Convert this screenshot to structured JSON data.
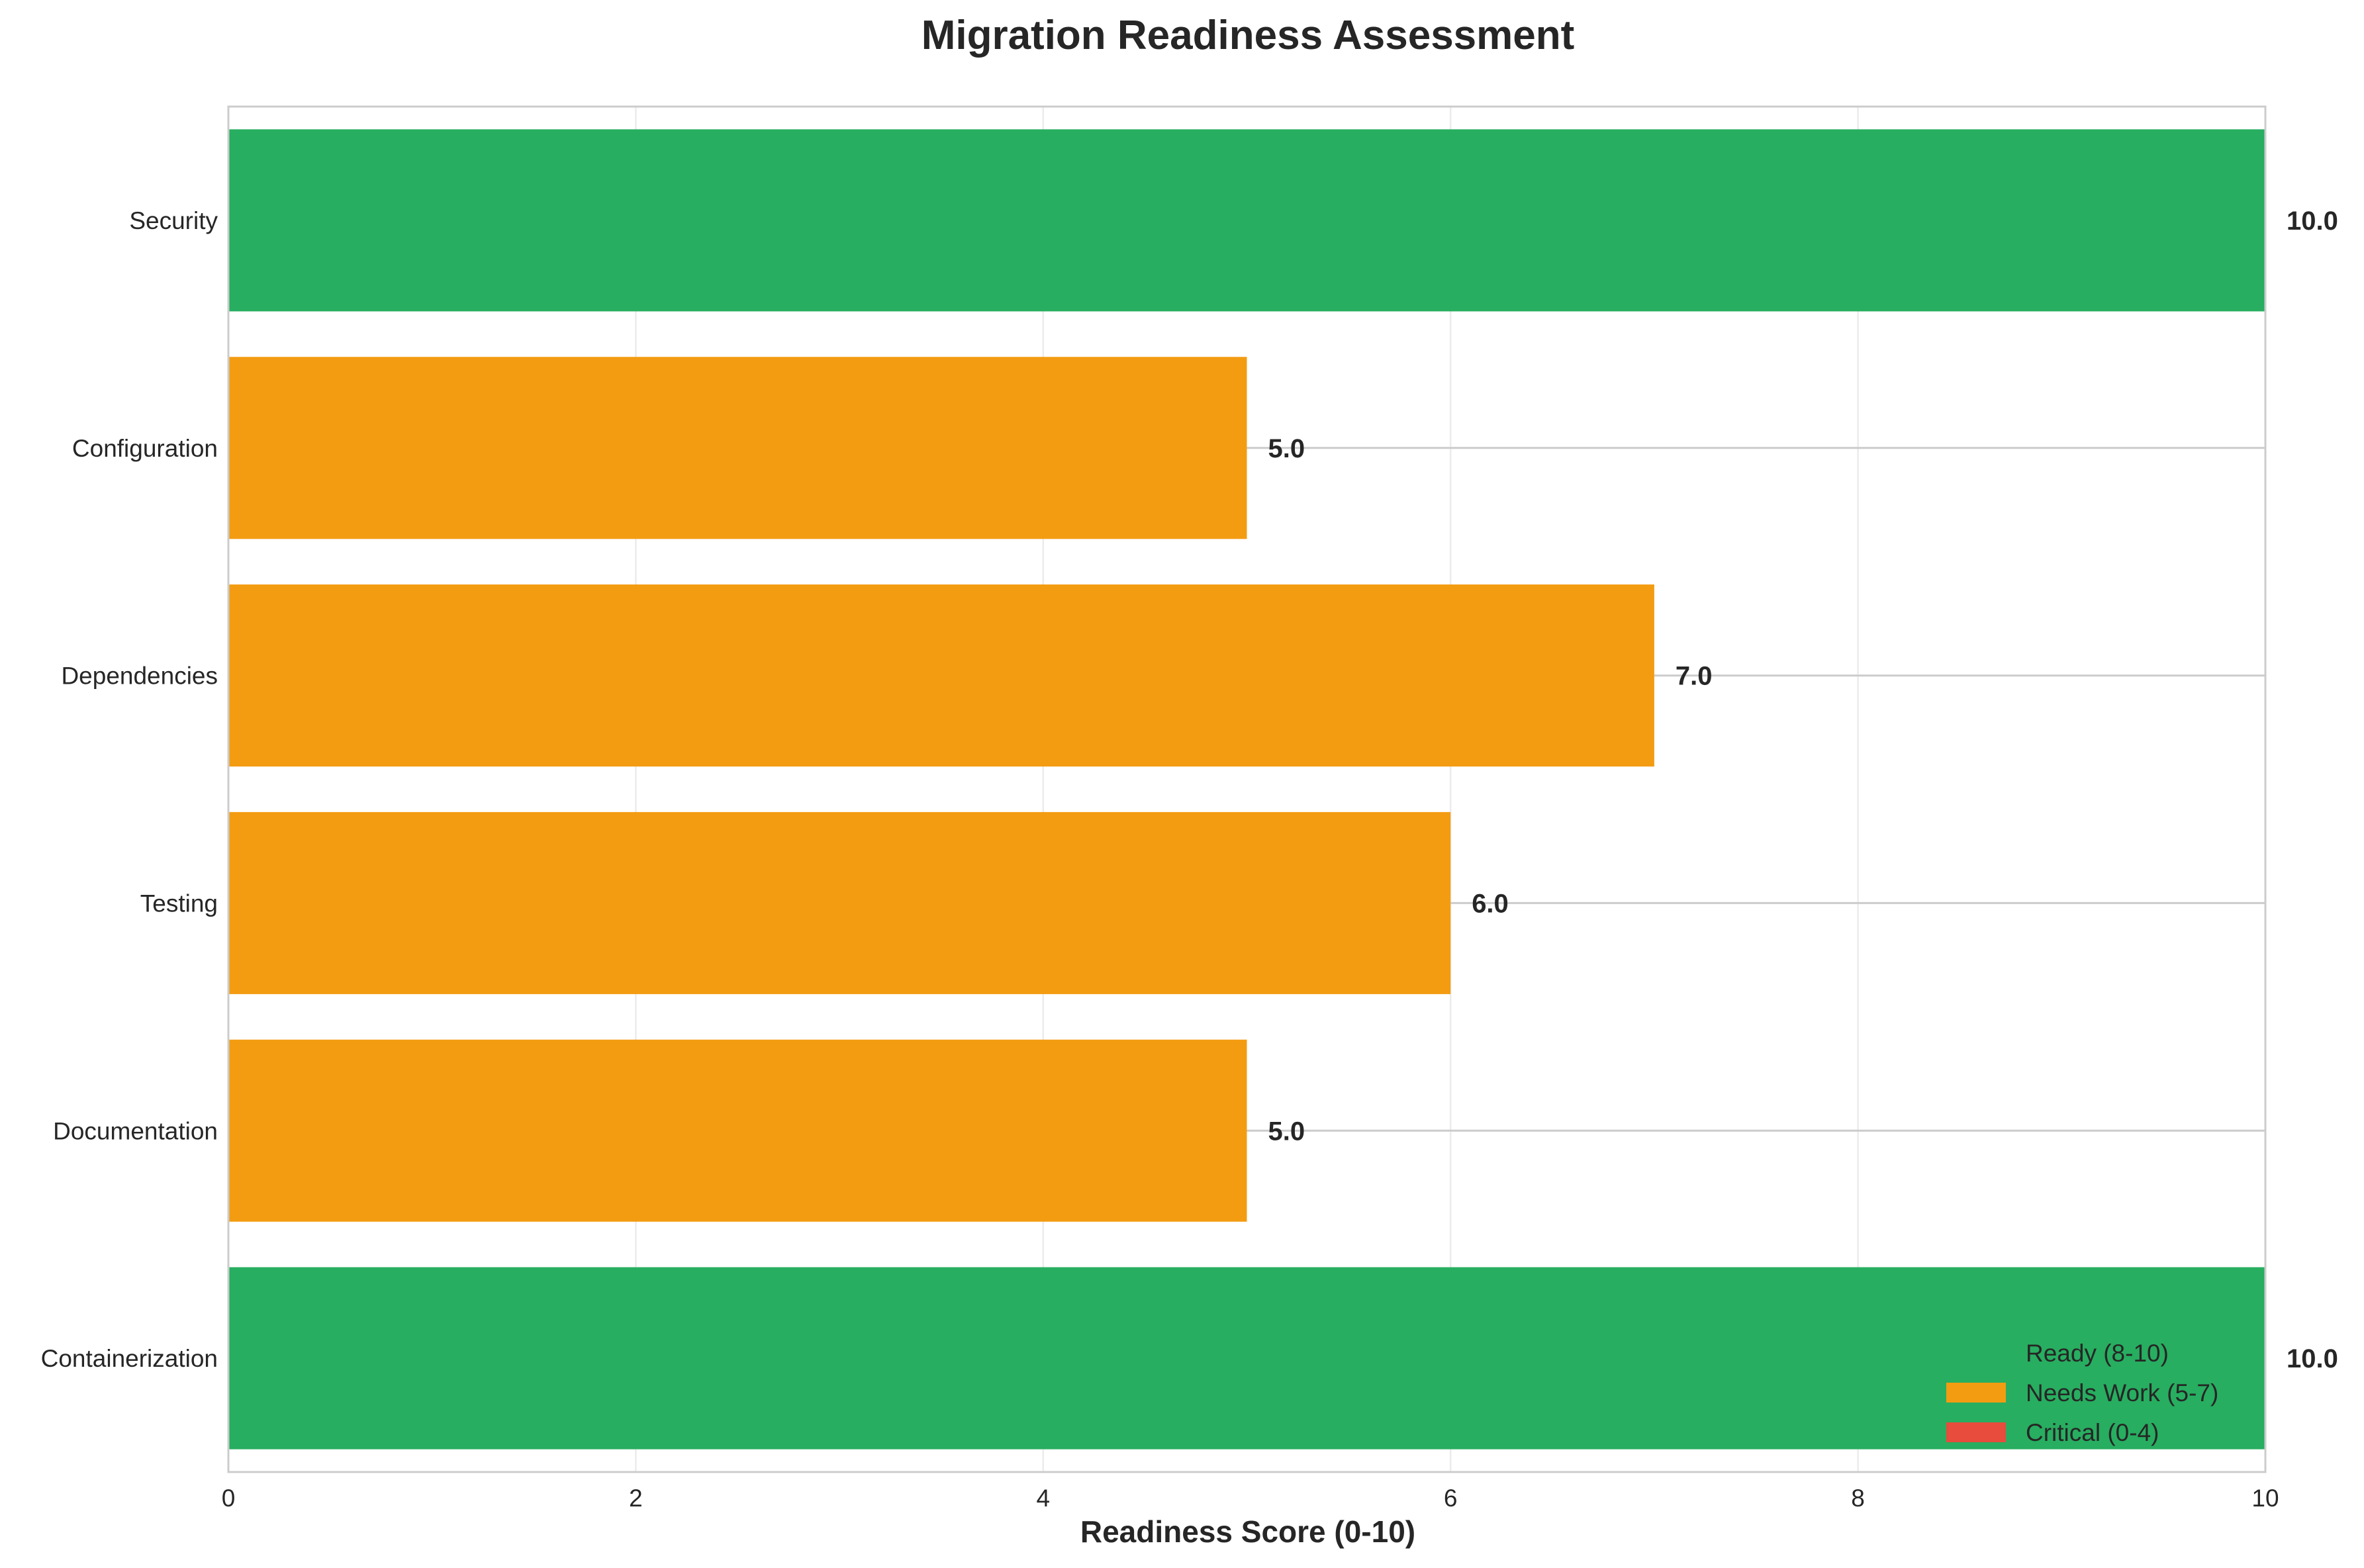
{
  "chart_data": {
    "type": "bar",
    "orientation": "horizontal",
    "title": "Migration Readiness Assessment",
    "xlabel": "Readiness Score (0-10)",
    "ylabel": "",
    "xlim": [
      0,
      10
    ],
    "xticks": [
      "0",
      "2",
      "4",
      "6",
      "8",
      "10"
    ],
    "grid": true,
    "legend_position": "lower-right",
    "categories": [
      "Security",
      "Configuration",
      "Dependencies",
      "Testing",
      "Documentation",
      "Containerization"
    ],
    "values": [
      10.0,
      5.0,
      7.0,
      6.0,
      5.0,
      10.0
    ],
    "value_labels": [
      "10.0",
      "5.0",
      "7.0",
      "6.0",
      "5.0",
      "10.0"
    ],
    "bar_status": [
      "ready",
      "needs_work",
      "needs_work",
      "needs_work",
      "needs_work",
      "ready"
    ],
    "legend": [
      {
        "key": "ready",
        "label": "Ready (8-10)",
        "color": "#27ae60",
        "swatch_visible": false
      },
      {
        "key": "needs_work",
        "label": "Needs Work (5-7)",
        "color": "#f39c12",
        "swatch_visible": true
      },
      {
        "key": "critical",
        "label": "Critical (0-4)",
        "color": "#e74c3c",
        "swatch_visible": true
      }
    ]
  }
}
